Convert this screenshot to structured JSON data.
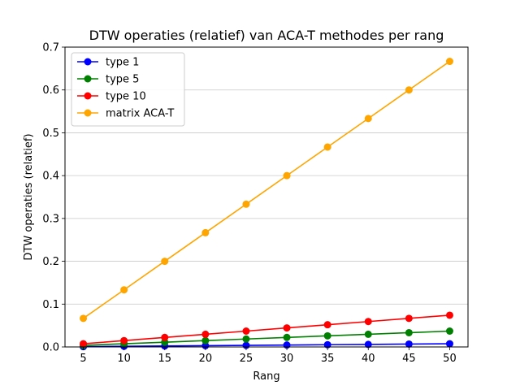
{
  "chart_data": {
    "type": "line",
    "title": "DTW operaties (relatief) van ACA-T methodes per rang",
    "xlabel": "Rang",
    "ylabel": "DTW operaties (relatief)",
    "x": [
      5,
      10,
      15,
      20,
      25,
      30,
      35,
      40,
      45,
      50
    ],
    "xlim": [
      2.75,
      52.25
    ],
    "ylim": [
      0,
      0.7
    ],
    "yticks": [
      0.0,
      0.1,
      0.2,
      0.3,
      0.4,
      0.5,
      0.6,
      0.7
    ],
    "ytick_labels": [
      "0.0",
      "0.1",
      "0.2",
      "0.3",
      "0.4",
      "0.5",
      "0.6",
      "0.7"
    ],
    "xticks": [
      5,
      10,
      15,
      20,
      25,
      30,
      35,
      40,
      45,
      50
    ],
    "xtick_labels": [
      "5",
      "10",
      "15",
      "20",
      "25",
      "30",
      "35",
      "40",
      "45",
      "50"
    ],
    "grid": "y",
    "legend_position": "top-left",
    "series": [
      {
        "name": "type 1",
        "color": "#0000ff",
        "values": [
          0.0007,
          0.0015,
          0.0022,
          0.003,
          0.0037,
          0.0044,
          0.0052,
          0.0059,
          0.0067,
          0.0074
        ]
      },
      {
        "name": "type 5",
        "color": "#008000",
        "values": [
          0.0037,
          0.0074,
          0.0111,
          0.0148,
          0.0185,
          0.0222,
          0.0259,
          0.0296,
          0.0333,
          0.037
        ]
      },
      {
        "name": "type 10",
        "color": "#ff0000",
        "values": [
          0.0074,
          0.0148,
          0.0222,
          0.0296,
          0.037,
          0.0444,
          0.0519,
          0.0593,
          0.0667,
          0.0741
        ]
      },
      {
        "name": "matrix ACA-T",
        "color": "#ffa500",
        "values": [
          0.0667,
          0.1333,
          0.2,
          0.2667,
          0.3333,
          0.4,
          0.4667,
          0.5333,
          0.6,
          0.6667
        ]
      }
    ]
  }
}
